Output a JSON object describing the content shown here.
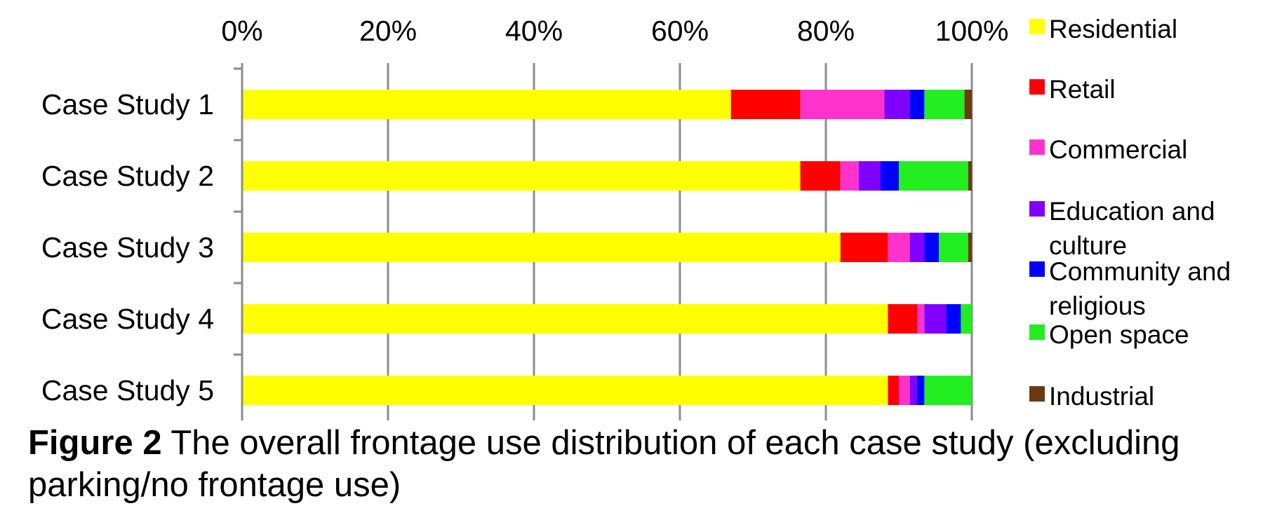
{
  "chart_data": {
    "type": "bar",
    "orientation": "horizontal",
    "stacked": "percent",
    "categories": [
      "Case Study 1",
      "Case Study 2",
      "Case Study 3",
      "Case Study 4",
      "Case Study 5"
    ],
    "x_ticks": [
      "0%",
      "20%",
      "40%",
      "60%",
      "80%",
      "100%"
    ],
    "xlim": [
      0,
      100
    ],
    "grid": "vertical",
    "legend_position": "right",
    "series": [
      {
        "name": "Residential",
        "color": "#ffff00",
        "values": [
          67,
          76.5,
          82,
          88.5,
          88.5
        ]
      },
      {
        "name": "Retail",
        "color": "#ff0000",
        "values": [
          9.5,
          5.5,
          6.5,
          4,
          1.5
        ]
      },
      {
        "name": "Commercial",
        "color": "#ff33cc",
        "values": [
          11.5,
          2.5,
          3,
          1,
          1.5
        ]
      },
      {
        "name": "Education and culture",
        "color": "#7f00ff",
        "values": [
          3.5,
          3,
          2,
          3,
          1
        ]
      },
      {
        "name": "Community and religious",
        "color": "#0000ff",
        "values": [
          2,
          2.5,
          2,
          2,
          1
        ]
      },
      {
        "name": "Open space",
        "color": "#22ee22",
        "values": [
          5.5,
          9.5,
          4,
          1.5,
          6.5
        ]
      },
      {
        "name": "Industrial",
        "color": "#6b3a12",
        "values": [
          1,
          0.5,
          0.5,
          0,
          0
        ]
      }
    ]
  },
  "caption": {
    "label": "Figure 2",
    "text": "The overall frontage use distribution of each case study (excluding parking/no frontage use)"
  }
}
